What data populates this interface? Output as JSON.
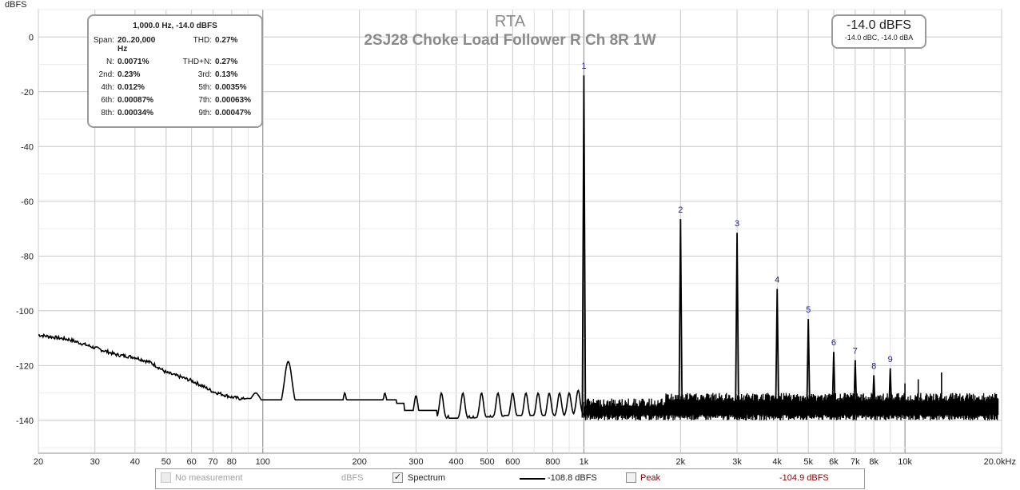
{
  "chart_data": {
    "type": "line",
    "title": "RTA",
    "subtitle": "2SJ28 Choke Load Follower R Ch 8R 1W",
    "ylabel": "dBFS",
    "xscale": "log",
    "xlim": [
      20,
      20000
    ],
    "ylim": [
      -152,
      10
    ],
    "grid": true,
    "y_ticks": [
      0,
      -20,
      -40,
      -60,
      -80,
      -100,
      -120,
      -140
    ],
    "x_ticks": [
      {
        "v": 20,
        "label": "20"
      },
      {
        "v": 30,
        "label": "30"
      },
      {
        "v": 40,
        "label": "40"
      },
      {
        "v": 50,
        "label": "50"
      },
      {
        "v": 60,
        "label": "60"
      },
      {
        "v": 70,
        "label": "70"
      },
      {
        "v": 80,
        "label": "80"
      },
      {
        "v": 100,
        "label": "100"
      },
      {
        "v": 200,
        "label": "200"
      },
      {
        "v": 300,
        "label": "300"
      },
      {
        "v": 400,
        "label": "400"
      },
      {
        "v": 500,
        "label": "500"
      },
      {
        "v": 600,
        "label": "600"
      },
      {
        "v": 800,
        "label": "800"
      },
      {
        "v": 1000,
        "label": "1k"
      },
      {
        "v": 2000,
        "label": "2k"
      },
      {
        "v": 3000,
        "label": "3k"
      },
      {
        "v": 4000,
        "label": "4k"
      },
      {
        "v": 5000,
        "label": "5k"
      },
      {
        "v": 6000,
        "label": "6k"
      },
      {
        "v": 7000,
        "label": "7k"
      },
      {
        "v": 8000,
        "label": "8k"
      },
      {
        "v": 10000,
        "label": "10k"
      },
      {
        "v": 20000,
        "label": "20.0kHz"
      }
    ],
    "spectrum_floor": [
      [
        20,
        -108.8
      ],
      [
        25,
        -110.5
      ],
      [
        30,
        -113.5
      ],
      [
        35,
        -116
      ],
      [
        40,
        -117
      ],
      [
        45,
        -119
      ],
      [
        50,
        -122.5
      ],
      [
        55,
        -124
      ],
      [
        60,
        -125.5
      ],
      [
        65,
        -127.5
      ],
      [
        70,
        -129.5
      ],
      [
        80,
        -131.5
      ],
      [
        90,
        -132.5
      ],
      [
        100,
        -135
      ],
      [
        150,
        -138
      ],
      [
        200,
        -139
      ],
      [
        300,
        -139.5
      ],
      [
        500,
        -139.5
      ],
      [
        800,
        -139
      ],
      [
        1000,
        -138
      ]
    ],
    "noise_bumps": [
      {
        "x": 90,
        "y": -132
      },
      {
        "x": 95,
        "y": -130
      },
      {
        "x": 120,
        "y": -118.5
      },
      {
        "x": 150,
        "y": -133
      },
      {
        "x": 180,
        "y": -130
      },
      {
        "x": 240,
        "y": -130
      },
      {
        "x": 300,
        "y": -131
      },
      {
        "x": 360,
        "y": -130
      },
      {
        "x": 420,
        "y": -130
      },
      {
        "x": 480,
        "y": -130
      },
      {
        "x": 540,
        "y": -130
      },
      {
        "x": 600,
        "y": -130
      },
      {
        "x": 660,
        "y": -130
      },
      {
        "x": 720,
        "y": -130
      },
      {
        "x": 780,
        "y": -130
      },
      {
        "x": 840,
        "y": -130
      },
      {
        "x": 900,
        "y": -130
      },
      {
        "x": 960,
        "y": -129
      }
    ],
    "harmonics": [
      {
        "label": "1",
        "x": 1000,
        "y": -14.0
      },
      {
        "label": "2",
        "x": 2000,
        "y": -66.5
      },
      {
        "label": "3",
        "x": 3000,
        "y": -71.5
      },
      {
        "label": "4",
        "x": 4000,
        "y": -92
      },
      {
        "label": "5",
        "x": 5000,
        "y": -103
      },
      {
        "label": "6",
        "x": 6000,
        "y": -115
      },
      {
        "label": "7",
        "x": 7000,
        "y": -118
      },
      {
        "label": "8",
        "x": 8000,
        "y": -123.5
      },
      {
        "label": "9",
        "x": 9000,
        "y": -121
      }
    ],
    "extra_peaks": [
      {
        "x": 10000,
        "y": -126.5
      },
      {
        "x": 11000,
        "y": -125
      },
      {
        "x": 13000,
        "y": -122.5
      }
    ],
    "hf_noise": {
      "from": 1000,
      "to": 19500,
      "top": -130,
      "bottom": -140
    }
  },
  "stats": {
    "header": "1,000.0 Hz, -14.0 dBFS",
    "rows": [
      {
        "k1": "Span:",
        "v1": "20..20,000 Hz",
        "k2": "THD:",
        "v2": "0.27%"
      },
      {
        "k1": "N:",
        "v1": "0.0071%",
        "k2": "THD+N:",
        "v2": "0.27%"
      },
      {
        "k1": "2nd:",
        "v1": "0.23%",
        "k2": "3rd:",
        "v2": "0.13%"
      },
      {
        "k1": "4th:",
        "v1": "0.012%",
        "k2": "5th:",
        "v2": "0.0035%"
      },
      {
        "k1": "6th:",
        "v1": "0.00087%",
        "k2": "7th:",
        "v2": "0.00063%"
      },
      {
        "k1": "8th:",
        "v1": "0.00034%",
        "k2": "9th:",
        "v2": "0.00047%"
      }
    ]
  },
  "level": {
    "main": "-14.0 dBFS",
    "sub": "-14.0 dBC, -14.0 dBA"
  },
  "legend": {
    "no_measurement": "No measurement",
    "no_measurement_unit": "dBFS",
    "spectrum": "Spectrum",
    "spectrum_value": "-108.8 dBFS",
    "peak": "Peak",
    "peak_value": "-104.9 dBFS",
    "spectrum_checked": "✓",
    "colors": {
      "spectrum": "#000000",
      "peak": "#8b0000",
      "disabled": "#a0a0a0"
    }
  }
}
